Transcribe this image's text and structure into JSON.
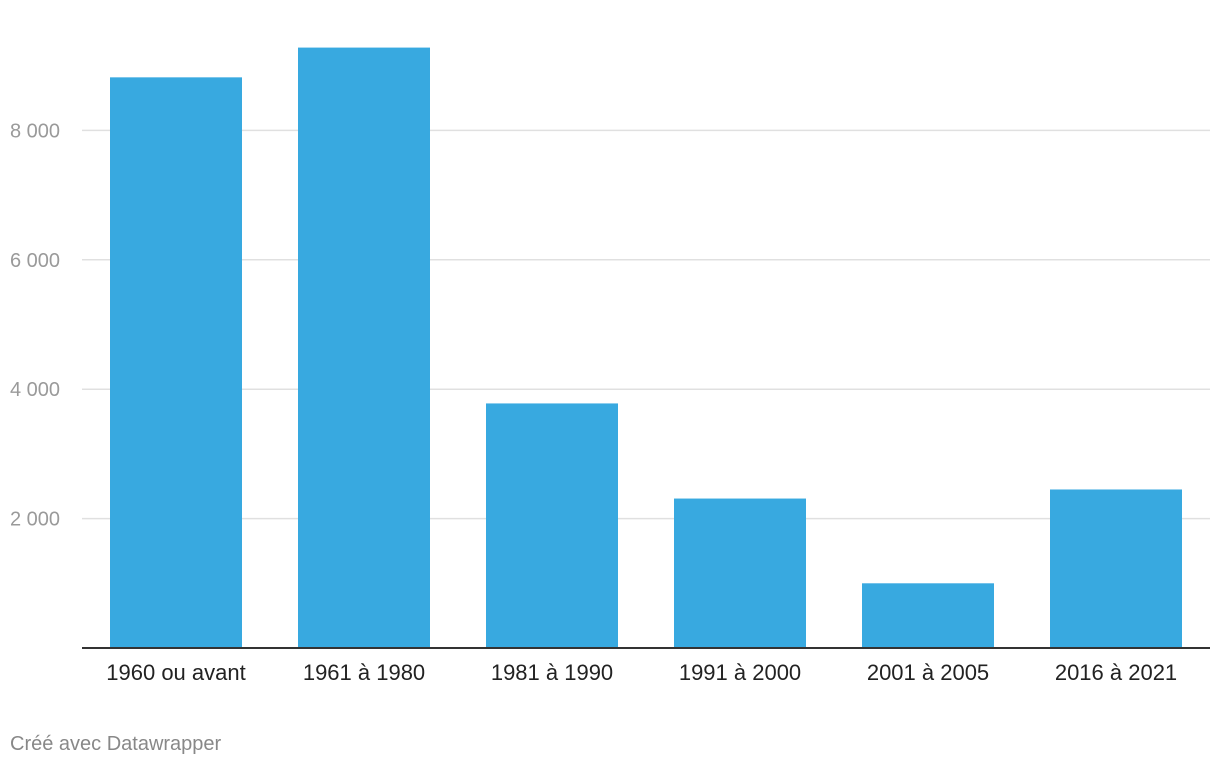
{
  "chart_data": {
    "type": "bar",
    "categories": [
      "1960 ou avant",
      "1961 à 1980",
      "1981 à 1990",
      "1991 à 2000",
      "2001 à 2005",
      "2016 à 2021"
    ],
    "values": [
      8820,
      9280,
      3780,
      2310,
      1000,
      2450
    ],
    "y_ticks": [
      2000,
      4000,
      6000,
      8000
    ],
    "y_tick_labels": [
      "2 000",
      "4 000",
      "6 000",
      "8 000"
    ],
    "ylim": [
      0,
      9280
    ],
    "grid": true,
    "bar_color": "#38a9e0"
  },
  "footer": {
    "credit": "Créé avec Datawrapper"
  },
  "colors": {
    "bar": "#38a9e0",
    "grid": "#e0e0e0",
    "axis": "#333333",
    "tick_label": "#9a9a9a",
    "category_label": "#222222",
    "credit": "#888888"
  }
}
